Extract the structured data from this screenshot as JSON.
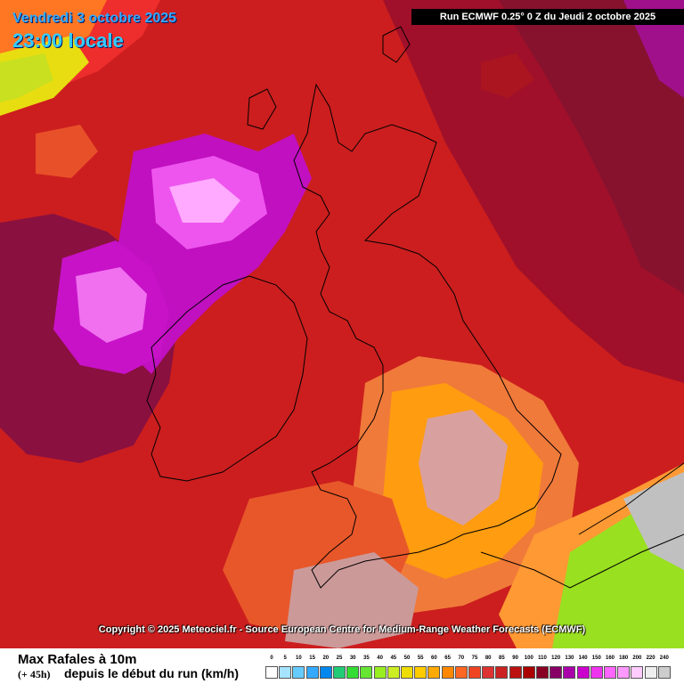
{
  "header": {
    "date": "Vendredi 3 octobre 2025",
    "time": "23:00 locale",
    "run": "Run ECMWF 0.25° 0 Z du Jeudi 2 octobre 2025"
  },
  "copyright": "Copyright © 2025 Meteociel.fr - Source European Centre for Medium-Range Weather Forecasts (ECMWF)",
  "footer": {
    "title": "Max Rafales à 10m",
    "offset": "(+ 45h)",
    "subtitle": "depuis le début du run (km/h)"
  },
  "legend": {
    "labels": [
      "0",
      "5",
      "10",
      "15",
      "20",
      "25",
      "30",
      "35",
      "40",
      "45",
      "50",
      "55",
      "60",
      "65",
      "70",
      "75",
      "80",
      "85",
      "90",
      "100",
      "110",
      "120",
      "130",
      "140",
      "150",
      "160",
      "180",
      "200",
      "220",
      "240"
    ],
    "colors": [
      "#ffffff",
      "#a6e3ff",
      "#66ccff",
      "#33aaff",
      "#0088ee",
      "#22cc77",
      "#33dd33",
      "#66e633",
      "#99ee22",
      "#ccee22",
      "#eedd00",
      "#ffcc00",
      "#ffaa00",
      "#ff8800",
      "#ff6622",
      "#ee4422",
      "#dd3333",
      "#cc2222",
      "#bb1111",
      "#aa0000",
      "#880022",
      "#880066",
      "#aa00aa",
      "#cc00cc",
      "#ee33ee",
      "#ff66ff",
      "#ff99ff",
      "#ffccff",
      "#eeeeee",
      "#cccccc"
    ]
  },
  "map": {
    "background": "#cc1e1e",
    "coastline_color": "#000000"
  }
}
